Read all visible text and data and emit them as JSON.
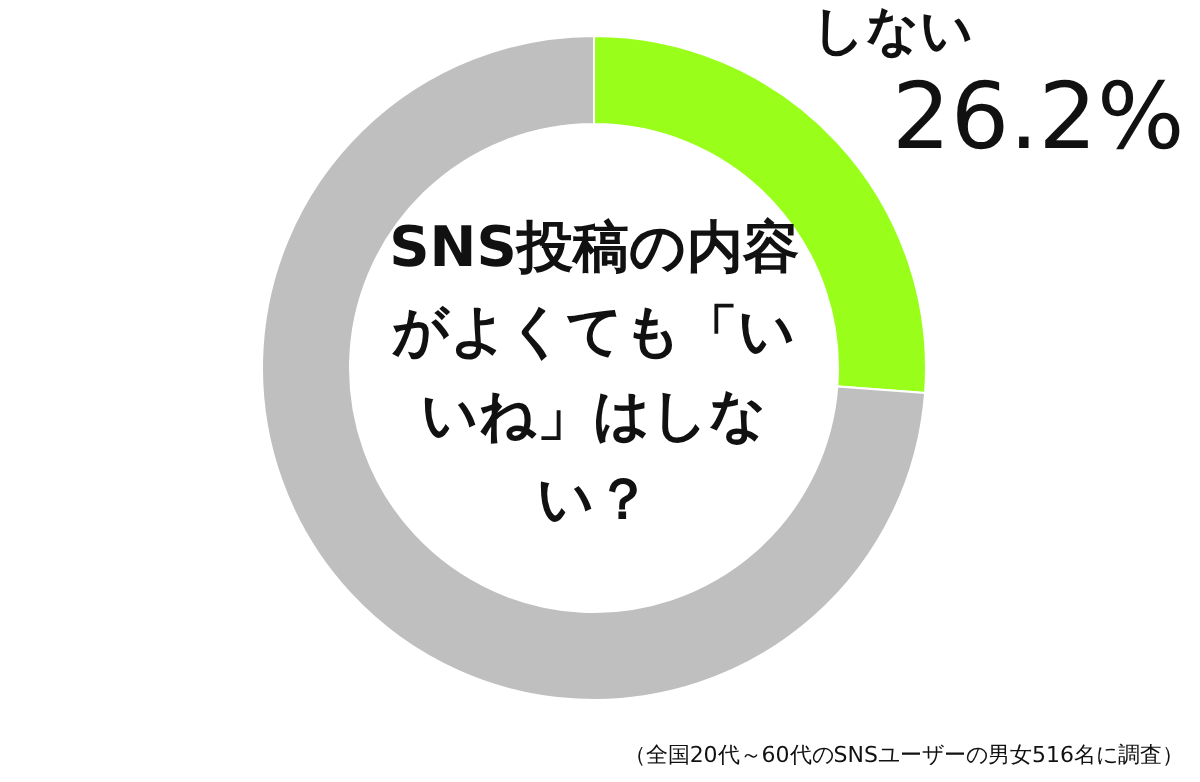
{
  "chart_data": {
    "type": "donut",
    "title": "SNS投稿の内容がよくても「いいね」はしない？",
    "categories": [
      "しない",
      null
    ],
    "values": [
      26.2,
      73.8
    ],
    "colors": [
      "#99ff1a",
      "#bfbfbf"
    ],
    "value_labels": [
      "26.2%",
      null
    ],
    "annotations": [
      "（全国20代～60代のSNSユーザーの男女516名に調査）"
    ]
  }
}
